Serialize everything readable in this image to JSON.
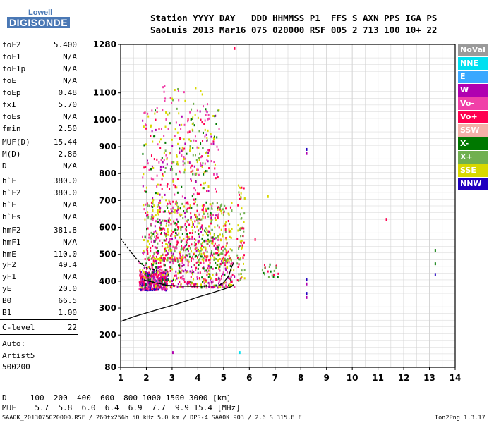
{
  "logo": {
    "top": "Lowell",
    "bottom": "DIGISONDE"
  },
  "header": {
    "line1": "Station YYYY DAY   DDD HHMMSS P1  FFS S AXN PPS IGA PS",
    "line2": "SaoLuis 2013 Mar16 075 020000 RSF 005 2 713 100 10+ 22"
  },
  "params_group1": [
    {
      "name": "foF2",
      "value": "5.400"
    },
    {
      "name": "foF1",
      "value": "N/A"
    },
    {
      "name": "foF1p",
      "value": "N/A"
    },
    {
      "name": "foE",
      "value": "N/A"
    },
    {
      "name": "foEp",
      "value": "0.48"
    },
    {
      "name": "fxI",
      "value": "5.70"
    },
    {
      "name": "foEs",
      "value": "N/A"
    },
    {
      "name": "fmin",
      "value": "2.50"
    }
  ],
  "params_group2": [
    {
      "name": "MUF(D)",
      "value": "15.44"
    },
    {
      "name": "M(D)",
      "value": "2.86"
    },
    {
      "name": "D",
      "value": "N/A"
    }
  ],
  "params_group3": [
    {
      "name": "h`F",
      "value": "380.0"
    },
    {
      "name": "h`F2",
      "value": "380.0"
    },
    {
      "name": "h`E",
      "value": "N/A"
    },
    {
      "name": "h`Es",
      "value": "N/A"
    }
  ],
  "params_group4": [
    {
      "name": "hmF2",
      "value": "381.8"
    },
    {
      "name": "hmF1",
      "value": "N/A"
    },
    {
      "name": "hmE",
      "value": "110.0"
    },
    {
      "name": "yF2",
      "value": "49.4"
    },
    {
      "name": "yF1",
      "value": "N/A"
    },
    {
      "name": "yE",
      "value": "20.0"
    },
    {
      "name": "B0",
      "value": "66.5"
    },
    {
      "name": "B1",
      "value": "1.00"
    }
  ],
  "clevel": {
    "name": "C-level",
    "value": "22"
  },
  "autoscaler": {
    "line1": "Auto:",
    "line2": "Artist5",
    "line3": "500200"
  },
  "footer": {
    "d_line": "D     100  200  400  600  800 1000 1500 3000 [km]",
    "muf_line": "MUF    5.7  5.8  6.0  6.4  6.9  7.7  9.9 15.4 [MHz]"
  },
  "bottom_left": "SAA0K_2013075020000.RSF / 260fx256h 50 kHz 5.0 km / DPS-4 SAA0K 903 / 2.6 S 315.8 E",
  "bottom_right": "Ion2Png 1.3.17",
  "colors": {
    "background": "#ffffff",
    "grid": "#d4d4d4",
    "trace": "#000000",
    "logo": "#4a78b5"
  },
  "chart_data": {
    "type": "scatter",
    "x_ticks": [
      "1",
      "2",
      "3",
      "4",
      "5",
      "6",
      "7",
      "8",
      "9",
      "10",
      "11",
      "12",
      "13",
      "14"
    ],
    "y_ticks": [
      "80",
      "200",
      "300",
      "400",
      "500",
      "600",
      "700",
      "800",
      "900",
      "1000",
      "1100",
      "1280"
    ],
    "xlim": [
      1,
      14
    ],
    "ylim": [
      80,
      1280
    ],
    "grid": true,
    "legend_placement": "right",
    "legend": [
      {
        "label": "NoVal",
        "color": "#9a9a9a"
      },
      {
        "label": "NNE",
        "color": "#00e0f0"
      },
      {
        "label": "E",
        "color": "#3aa8ff"
      },
      {
        "label": "W",
        "color": "#b000b0"
      },
      {
        "label": "Vo-",
        "color": "#f040a8"
      },
      {
        "label": "Vo+",
        "color": "#ff0050"
      },
      {
        "label": "SSW",
        "color": "#f5b0a8"
      },
      {
        "label": "X-",
        "color": "#007800"
      },
      {
        "label": "X+",
        "color": "#70b050"
      },
      {
        "label": "SSE",
        "color": "#d8d800"
      },
      {
        "label": "NNW",
        "color": "#2000c0"
      }
    ],
    "echo_clusters": [
      {
        "x": [
          1.7,
          2.8
        ],
        "y": [
          370,
          440
        ],
        "colors": [
          "#ff0050",
          "#b000b0",
          "#2000c0",
          "#f040a8"
        ],
        "n": 320
      },
      {
        "x": [
          1.7,
          5.4
        ],
        "y": [
          380,
          480
        ],
        "colors": [
          "#ff0050",
          "#f040a8",
          "#b000b0",
          "#007800",
          "#d8d800"
        ],
        "n": 380
      },
      {
        "x": [
          2.0,
          5.3
        ],
        "y": [
          480,
          700
        ],
        "colors": [
          "#d8d800",
          "#70b050",
          "#ff0050"
        ],
        "n": 420
      },
      {
        "x": [
          1.8,
          4.8
        ],
        "y": [
          480,
          1050
        ],
        "colors": [
          "#ff0050",
          "#b000b0",
          "#f040a8",
          "#007800",
          "#d8d800"
        ],
        "n": 520
      },
      {
        "x": [
          2.6,
          4.4
        ],
        "y": [
          800,
          1130
        ],
        "colors": [
          "#d8d800",
          "#70b050",
          "#f040a8"
        ],
        "n": 90
      },
      {
        "x": [
          5.5,
          5.8
        ],
        "y": [
          400,
          760
        ],
        "colors": [
          "#d8d800",
          "#ff0050",
          "#70b050"
        ],
        "n": 70
      },
      {
        "x": [
          6.4,
          7.1
        ],
        "y": [
          420,
          470
        ],
        "colors": [
          "#70b050",
          "#ff0050",
          "#007800"
        ],
        "n": 20
      }
    ],
    "echo_points": [
      {
        "x": 8.2,
        "y": 895,
        "color": "#2000c0"
      },
      {
        "x": 8.2,
        "y": 880,
        "color": "#b000b0"
      },
      {
        "x": 8.2,
        "y": 410,
        "color": "#2000c0"
      },
      {
        "x": 8.2,
        "y": 395,
        "color": "#b000b0"
      },
      {
        "x": 8.2,
        "y": 360,
        "color": "#2000c0"
      },
      {
        "x": 8.2,
        "y": 345,
        "color": "#b000b0"
      },
      {
        "x": 11.3,
        "y": 635,
        "color": "#ff0050"
      },
      {
        "x": 13.2,
        "y": 520,
        "color": "#007800"
      },
      {
        "x": 13.2,
        "y": 470,
        "color": "#007800"
      },
      {
        "x": 13.2,
        "y": 430,
        "color": "#2000c0"
      },
      {
        "x": 5.4,
        "y": 1270,
        "color": "#ff0050"
      },
      {
        "x": 3.0,
        "y": 140,
        "color": "#b000b0"
      },
      {
        "x": 5.6,
        "y": 140,
        "color": "#00e0f0"
      },
      {
        "x": 6.7,
        "y": 720,
        "color": "#d8d800"
      },
      {
        "x": 6.2,
        "y": 560,
        "color": "#ff0050"
      }
    ],
    "vh_profile": {
      "x": [
        1.0,
        1.5,
        2.0,
        2.5,
        3.0,
        3.5,
        4.0,
        4.5,
        5.0,
        5.3,
        5.4
      ],
      "y": [
        250,
        268,
        282,
        296,
        310,
        325,
        341,
        355,
        370,
        380,
        388
      ]
    },
    "trace": {
      "x": [
        1.9,
        2.3,
        2.8,
        3.3,
        3.8,
        4.3,
        4.8,
        5.0,
        5.2,
        5.3,
        5.4
      ],
      "y": [
        405,
        395,
        385,
        382,
        381,
        382,
        383,
        395,
        420,
        450,
        470
      ]
    },
    "trace_low": {
      "x": [
        1.0,
        1.3,
        1.6,
        1.8,
        2.0,
        2.4
      ],
      "y": [
        560,
        520,
        485,
        465,
        450,
        440
      ]
    }
  }
}
